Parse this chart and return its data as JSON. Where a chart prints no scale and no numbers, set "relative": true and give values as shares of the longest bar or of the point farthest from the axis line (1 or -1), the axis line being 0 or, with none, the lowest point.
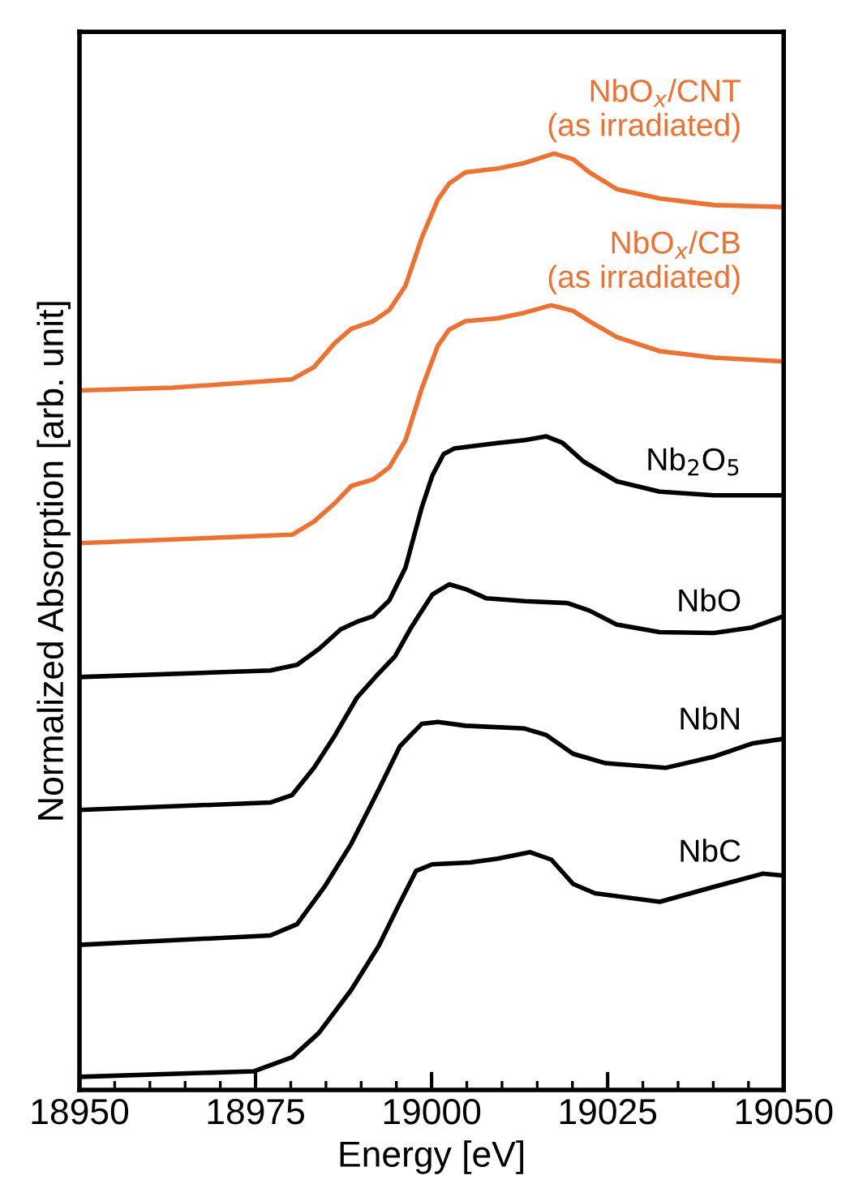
{
  "chart_data": {
    "type": "line",
    "relative": true,
    "xlabel": "Energy [eV]",
    "ylabel": "Normalized Absorption [arb. unit]",
    "xlim": [
      18950,
      19050
    ],
    "xticks": [
      18950,
      18975,
      19000,
      19025,
      19050
    ],
    "tick_labels": "x",
    "grid": false,
    "legend": false,
    "marker": "none",
    "line_style": "solid",
    "series": [
      {
        "name": "NbO$_{x}$/CNT\n(as irradiated)",
        "color": "#f07030",
        "x": [
          18950,
          18963.3,
          18980.2,
          18983.3,
          18986.3,
          18988.6,
          18991.7,
          18994.0,
          18996.3,
          18998.6,
          19000.9,
          19002.5,
          19004.8,
          19009.4,
          19013.2,
          19017.4,
          19020.1,
          19022.4,
          19026.3,
          19032.4,
          19040.1,
          19050
        ],
        "values": [
          0.747,
          0.75,
          0.759,
          0.772,
          0.798,
          0.813,
          0.821,
          0.833,
          0.859,
          0.91,
          0.951,
          0.968,
          0.98,
          0.984,
          0.99,
          1.0,
          0.994,
          0.98,
          0.962,
          0.952,
          0.945,
          0.943
        ]
      },
      {
        "name": "NbO$_{x}$/CB\n(as irradiated)",
        "color": "#f07030",
        "x": [
          18950,
          18980.2,
          18983.3,
          18986.3,
          18988.6,
          18991.7,
          18994.0,
          18996.3,
          18998.6,
          19000.9,
          19002.5,
          19004.8,
          19009.4,
          19013.2,
          19017.0,
          19020.1,
          19022.4,
          19026.3,
          19032.4,
          19040.1,
          19050
        ],
        "values": [
          0.584,
          0.593,
          0.607,
          0.627,
          0.645,
          0.652,
          0.665,
          0.694,
          0.749,
          0.795,
          0.812,
          0.821,
          0.824,
          0.83,
          0.838,
          0.832,
          0.821,
          0.804,
          0.789,
          0.782,
          0.778
        ]
      },
      {
        "name": "Nb$_{2}$O$_{5}$",
        "color": "#000000",
        "x": [
          18950,
          18977.1,
          18980.9,
          18984.0,
          18987.1,
          18989.4,
          18991.7,
          18994.0,
          18996.3,
          18998.6,
          19000.1,
          19001.7,
          19003.2,
          19009.4,
          19013.2,
          19016.3,
          19018.6,
          19021.6,
          19026.3,
          19032.4,
          19040.1,
          19050
        ],
        "values": [
          0.441,
          0.448,
          0.454,
          0.471,
          0.492,
          0.5,
          0.506,
          0.523,
          0.558,
          0.622,
          0.656,
          0.679,
          0.685,
          0.691,
          0.694,
          0.698,
          0.691,
          0.671,
          0.65,
          0.639,
          0.635,
          0.635
        ]
      },
      {
        "name": "NbO",
        "color": "#000000",
        "x": [
          18950,
          18977.1,
          18980.2,
          18983.3,
          18986.3,
          18989.4,
          18992.5,
          18994.8,
          18997.1,
          19000.1,
          19002.5,
          19004.8,
          19007.8,
          19013.2,
          19019.3,
          19022.4,
          19026.3,
          19032.4,
          19040.1,
          19045.5,
          19050
        ],
        "values": [
          0.299,
          0.307,
          0.315,
          0.344,
          0.379,
          0.419,
          0.445,
          0.463,
          0.494,
          0.529,
          0.54,
          0.535,
          0.525,
          0.522,
          0.52,
          0.512,
          0.497,
          0.489,
          0.488,
          0.494,
          0.506
        ]
      },
      {
        "name": "NbN",
        "color": "#000000",
        "x": [
          18950,
          18977.1,
          18980.9,
          18984.8,
          18988.6,
          18992.5,
          18995.5,
          18998.6,
          19000.9,
          19004.8,
          19013.2,
          19016.3,
          19020.1,
          19024.7,
          19033.2,
          19040.1,
          19045.5,
          19050
        ],
        "values": [
          0.155,
          0.165,
          0.177,
          0.217,
          0.263,
          0.321,
          0.367,
          0.391,
          0.393,
          0.389,
          0.386,
          0.379,
          0.359,
          0.349,
          0.344,
          0.356,
          0.37,
          0.375
        ]
      },
      {
        "name": "NbC",
        "color": "#000000",
        "x": [
          18950,
          18974.8,
          18980.2,
          18984.0,
          18988.6,
          18992.5,
          18995.5,
          18997.8,
          19000.1,
          19005.5,
          19009.4,
          19014.0,
          19017.0,
          19020.1,
          19023.2,
          19032.4,
          19040.1,
          19047.0,
          19050
        ],
        "values": [
          0.014,
          0.02,
          0.035,
          0.061,
          0.107,
          0.154,
          0.2,
          0.234,
          0.241,
          0.243,
          0.247,
          0.254,
          0.246,
          0.22,
          0.21,
          0.201,
          0.217,
          0.231,
          0.229
        ]
      }
    ]
  }
}
